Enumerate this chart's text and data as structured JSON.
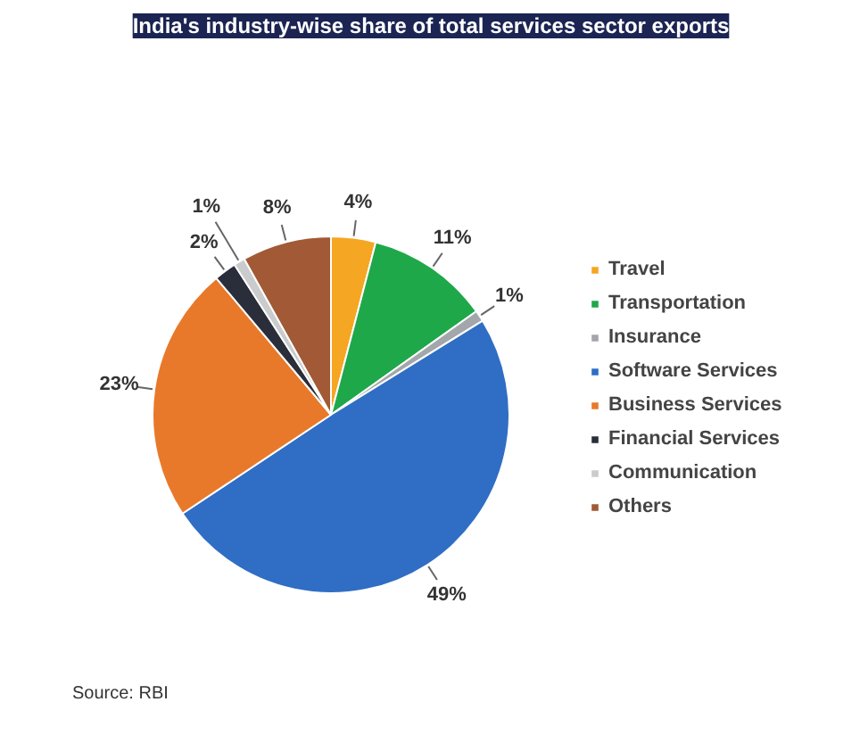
{
  "chart_data": {
    "type": "pie",
    "title": "India's industry-wise share of total services sector exports",
    "categories": [
      "Travel",
      "Transportation",
      "Insurance",
      "Software Services",
      "Business Services",
      "Financial Services",
      "Communication",
      "Others"
    ],
    "values": [
      4,
      11,
      1,
      49,
      23,
      2,
      1,
      8
    ],
    "colors": [
      "#f5a623",
      "#1fa84a",
      "#a3a7ab",
      "#2f6ec4",
      "#e8792a",
      "#2a2d3a",
      "#c9cbcc",
      "#a15a35"
    ],
    "value_labels": [
      "4%",
      "11%",
      "1%",
      "49%",
      "23%",
      "2%",
      "1%",
      "8%"
    ],
    "legend": "right",
    "annotations": [
      "Source: RBI"
    ]
  }
}
